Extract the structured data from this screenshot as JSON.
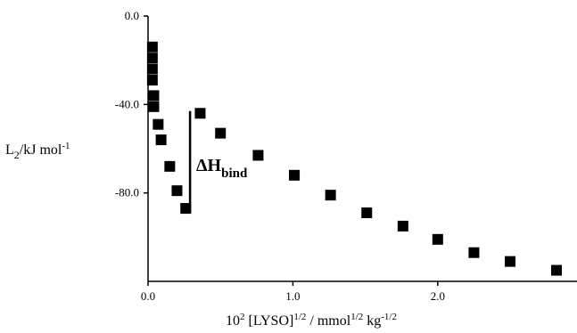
{
  "chart_data": {
    "type": "scatter",
    "xlabel": {
      "base": "10",
      "sup1": "2",
      "mid": " [LYSO]",
      "sup2": "1/2",
      "mid2": " / mmol",
      "sup3": "1/2",
      "mid3": " kg",
      "sup4": "-1/2"
    },
    "ylabel": {
      "base": "L",
      "sub": "2",
      "rest": "/kJ mol",
      "sup": "-1"
    },
    "xlim": [
      0,
      2.9
    ],
    "ylim": [
      -120,
      0
    ],
    "x_ticks": [
      {
        "value": 0,
        "label": "0.0"
      },
      {
        "value": 1,
        "label": "1.0"
      },
      {
        "value": 2,
        "label": "2.0"
      }
    ],
    "y_ticks": [
      {
        "value": 0,
        "label": "0.0"
      },
      {
        "value": -40,
        "label": "-40.0"
      },
      {
        "value": -80,
        "label": "-80.0"
      }
    ],
    "annotation": {
      "text": "ΔH",
      "sub": "bind",
      "bar_y_top": -43,
      "bar_y_bottom": -89,
      "bar_x": 0.29
    },
    "series": [
      {
        "marker": "square",
        "color": "#000000",
        "points": [
          {
            "x": 0.03,
            "y": -14
          },
          {
            "x": 0.03,
            "y": -19
          },
          {
            "x": 0.03,
            "y": -24
          },
          {
            "x": 0.03,
            "y": -29
          },
          {
            "x": 0.04,
            "y": -36
          },
          {
            "x": 0.04,
            "y": -41
          },
          {
            "x": 0.07,
            "y": -49
          },
          {
            "x": 0.09,
            "y": -56
          },
          {
            "x": 0.15,
            "y": -68
          },
          {
            "x": 0.2,
            "y": -79
          },
          {
            "x": 0.26,
            "y": -87
          },
          {
            "x": 0.36,
            "y": -44
          },
          {
            "x": 0.5,
            "y": -53
          },
          {
            "x": 0.76,
            "y": -63
          },
          {
            "x": 1.01,
            "y": -72
          },
          {
            "x": 1.26,
            "y": -81
          },
          {
            "x": 1.51,
            "y": -89
          },
          {
            "x": 1.76,
            "y": -95
          },
          {
            "x": 2.0,
            "y": -101
          },
          {
            "x": 2.25,
            "y": -107
          },
          {
            "x": 2.5,
            "y": -111
          },
          {
            "x": 2.82,
            "y": -115
          }
        ]
      }
    ]
  }
}
